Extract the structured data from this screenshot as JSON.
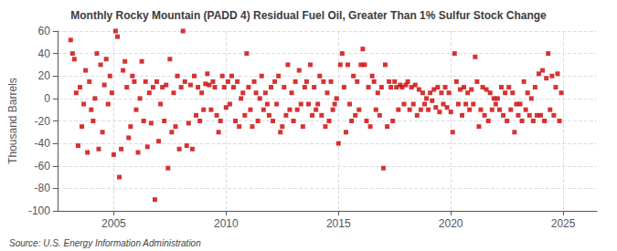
{
  "chart_data": {
    "type": "scatter",
    "title": "Monthly Rocky Mountain (PADD 4) Residual Fuel Oil, Greater Than 1% Sulfur Stock Change",
    "y_label": "Thousand Barrels",
    "annotations": [
      "Source: U.S. Energy Information Administration"
    ],
    "color": "#cc0000",
    "marker": "square",
    "grid": true,
    "xlim": [
      2002.5,
      2026.5
    ],
    "xticks": [
      2005,
      2010,
      2015,
      2020,
      2025
    ],
    "ylim": [
      -100,
      60
    ],
    "yticks": [
      -100,
      -80,
      -60,
      -40,
      -20,
      0,
      20,
      40,
      60
    ],
    "x": [
      2003.083,
      2003.167,
      2003.25,
      2003.333,
      2003.417,
      2003.5,
      2003.583,
      2003.667,
      2003.75,
      2003.833,
      2003.917,
      2004.0,
      2004.083,
      2004.167,
      2004.25,
      2004.333,
      2004.417,
      2004.5,
      2004.583,
      2004.667,
      2004.75,
      2004.833,
      2004.917,
      2005.0,
      2005.083,
      2005.167,
      2005.25,
      2005.333,
      2005.417,
      2005.5,
      2005.583,
      2005.667,
      2005.75,
      2005.833,
      2005.917,
      2006.0,
      2006.083,
      2006.167,
      2006.25,
      2006.333,
      2006.417,
      2006.5,
      2006.583,
      2006.667,
      2006.75,
      2006.833,
      2006.917,
      2007.0,
      2007.083,
      2007.167,
      2007.25,
      2007.333,
      2007.417,
      2007.5,
      2007.583,
      2007.667,
      2007.75,
      2007.833,
      2007.917,
      2008.0,
      2008.083,
      2008.167,
      2008.25,
      2008.333,
      2008.417,
      2008.5,
      2008.583,
      2008.667,
      2008.75,
      2008.833,
      2008.917,
      2009.0,
      2009.083,
      2009.167,
      2009.25,
      2009.333,
      2009.417,
      2009.5,
      2009.583,
      2009.667,
      2009.75,
      2009.833,
      2009.917,
      2010.0,
      2010.083,
      2010.167,
      2010.25,
      2010.333,
      2010.417,
      2010.5,
      2010.583,
      2010.667,
      2010.75,
      2010.833,
      2010.917,
      2011.0,
      2011.083,
      2011.167,
      2011.25,
      2011.333,
      2011.417,
      2011.5,
      2011.583,
      2011.667,
      2011.75,
      2011.833,
      2011.917,
      2012.0,
      2012.083,
      2012.167,
      2012.25,
      2012.333,
      2012.417,
      2012.5,
      2012.583,
      2012.667,
      2012.75,
      2012.833,
      2012.917,
      2013.0,
      2013.083,
      2013.167,
      2013.25,
      2013.333,
      2013.417,
      2013.5,
      2013.583,
      2013.667,
      2013.75,
      2013.833,
      2013.917,
      2014.0,
      2014.083,
      2014.167,
      2014.25,
      2014.333,
      2014.417,
      2014.5,
      2014.583,
      2014.667,
      2014.75,
      2014.833,
      2014.917,
      2015.0,
      2015.083,
      2015.167,
      2015.25,
      2015.333,
      2015.417,
      2015.5,
      2015.583,
      2015.667,
      2015.75,
      2015.833,
      2015.917,
      2016.0,
      2016.083,
      2016.167,
      2016.25,
      2016.333,
      2016.417,
      2016.5,
      2016.583,
      2016.667,
      2016.75,
      2016.833,
      2016.917,
      2017.0,
      2017.083,
      2017.167,
      2017.25,
      2017.333,
      2017.417,
      2017.5,
      2017.583,
      2017.667,
      2017.75,
      2017.833,
      2017.917,
      2018.0,
      2018.083,
      2018.167,
      2018.25,
      2018.333,
      2018.417,
      2018.5,
      2018.583,
      2018.667,
      2018.75,
      2018.833,
      2018.917,
      2019.0,
      2019.083,
      2019.167,
      2019.25,
      2019.333,
      2019.417,
      2019.5,
      2019.583,
      2019.667,
      2019.75,
      2019.833,
      2019.917,
      2020.0,
      2020.083,
      2020.167,
      2020.25,
      2020.333,
      2020.417,
      2020.5,
      2020.583,
      2020.667,
      2020.75,
      2020.833,
      2020.917,
      2021.0,
      2021.083,
      2021.167,
      2021.25,
      2021.333,
      2021.417,
      2021.5,
      2021.583,
      2021.667,
      2021.75,
      2021.833,
      2021.917,
      2022.0,
      2022.083,
      2022.167,
      2022.25,
      2022.333,
      2022.417,
      2022.5,
      2022.583,
      2022.667,
      2022.75,
      2022.833,
      2022.917,
      2023.0,
      2023.083,
      2023.167,
      2023.25,
      2023.333,
      2023.417,
      2023.5,
      2023.583,
      2023.667,
      2023.75,
      2023.833,
      2023.917,
      2024.0,
      2024.083,
      2024.167,
      2024.25,
      2024.333,
      2024.417,
      2024.5,
      2024.583,
      2024.667,
      2024.75,
      2024.833,
      2024.917
    ],
    "values": [
      52,
      40,
      35,
      5,
      -42,
      10,
      -25,
      -5,
      25,
      -48,
      15,
      -10,
      -20,
      0,
      40,
      -45,
      30,
      -30,
      12,
      35,
      -5,
      20,
      5,
      -50,
      60,
      55,
      -70,
      -45,
      25,
      33,
      10,
      -35,
      -25,
      20,
      15,
      -10,
      -48,
      0,
      33,
      -20,
      15,
      -43,
      5,
      -22,
      10,
      -90,
      15,
      -38,
      -5,
      10,
      -20,
      12,
      -62,
      35,
      -30,
      5,
      -25,
      20,
      -45,
      10,
      60,
      15,
      -42,
      -22,
      12,
      -45,
      20,
      -15,
      10,
      -20,
      5,
      -10,
      13,
      22,
      12,
      -10,
      15,
      10,
      -15,
      -30,
      -20,
      20,
      10,
      -8,
      15,
      -5,
      20,
      10,
      -20,
      15,
      -25,
      0,
      5,
      -15,
      40,
      10,
      -10,
      -25,
      15,
      5,
      -20,
      0,
      20,
      -10,
      5,
      -5,
      -15,
      10,
      -20,
      15,
      -5,
      20,
      -30,
      -25,
      10,
      -15,
      30,
      -10,
      5,
      -20,
      15,
      -10,
      25,
      -5,
      -25,
      10,
      15,
      -5,
      30,
      -15,
      10,
      -10,
      -5,
      20,
      -15,
      15,
      -25,
      5,
      -20,
      15,
      -10,
      -5,
      0,
      -40,
      30,
      40,
      10,
      -30,
      30,
      -5,
      -20,
      20,
      -15,
      15,
      -10,
      30,
      44,
      30,
      -20,
      10,
      -25,
      20,
      15,
      -10,
      5,
      -15,
      10,
      -62,
      30,
      -25,
      15,
      10,
      -20,
      15,
      10,
      -10,
      12,
      10,
      -5,
      12,
      15,
      -10,
      10,
      -5,
      12,
      -15,
      8,
      -10,
      5,
      -5,
      0,
      -10,
      5,
      -2,
      8,
      -8,
      10,
      -12,
      5,
      -5,
      10,
      -8,
      5,
      -12,
      -30,
      40,
      15,
      -5,
      8,
      -15,
      10,
      -5,
      5,
      -10,
      8,
      -5,
      37,
      15,
      -25,
      -10,
      10,
      -15,
      8,
      -20,
      5,
      -10,
      0,
      -5,
      0,
      -10,
      10,
      -15,
      5,
      -20,
      10,
      -10,
      5,
      -30,
      -5,
      -15,
      -5,
      -20,
      15,
      -10,
      5,
      -15,
      0,
      -20,
      10,
      -15,
      22,
      -15,
      25,
      -20,
      18,
      40,
      -10,
      20,
      -15,
      10,
      22,
      -20,
      5
    ]
  }
}
